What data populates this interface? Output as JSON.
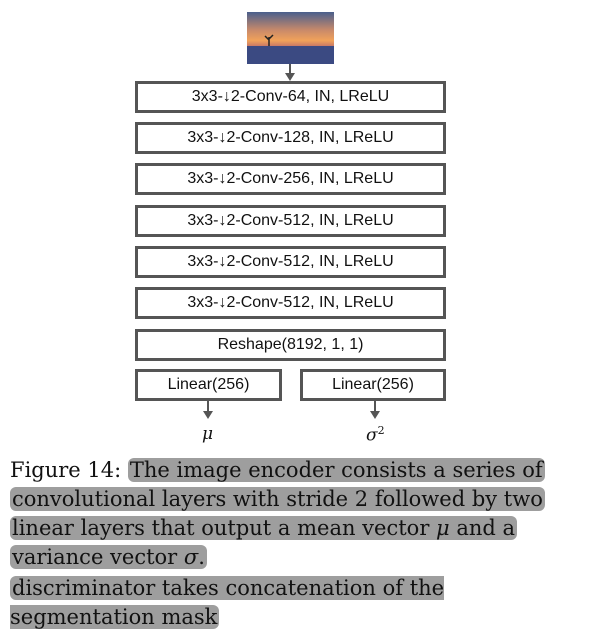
{
  "diagram": {
    "input_image": "sunset-landscape-thumbnail",
    "layers": [
      "3x3-↓2-Conv-64, IN, LReLU",
      "3x3-↓2-Conv-128, IN, LReLU",
      "3x3-↓2-Conv-256, IN, LReLU",
      "3x3-↓2-Conv-512, IN, LReLU",
      "3x3-↓2-Conv-512, IN, LReLU",
      "3x3-↓2-Conv-512, IN, LReLU"
    ],
    "reshape": "Reshape(8192, 1, 1)",
    "linear_left": "Linear(256)",
    "linear_right": "Linear(256)",
    "output_mu": "μ",
    "output_sigma": "σ",
    "output_sigma_exp": "2"
  },
  "caption": {
    "label": "Figure 14:",
    "text_part1": "The image encoder consists a series of convolutional layers with stride 2 followed by two linear layers that output a mean vector",
    "mu": "μ",
    "text_part2": "and a variance vector",
    "sigma": "σ",
    "end": "."
  },
  "extra_line": "discriminator takes concatenation of the segmentation mask",
  "colors": {
    "box_border": "#555555",
    "highlight": "#9e9e9e"
  }
}
